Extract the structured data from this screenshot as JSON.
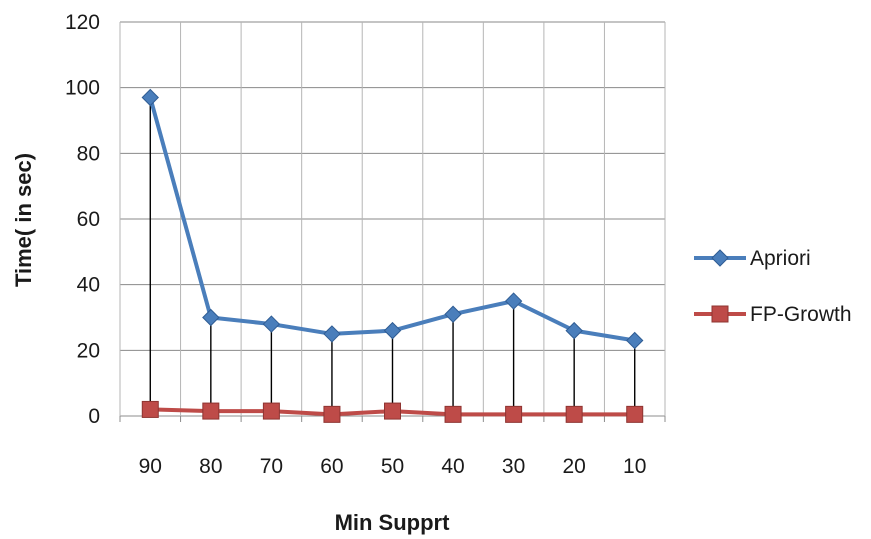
{
  "chart_data": {
    "type": "line",
    "title": "",
    "xlabel": "Min Supprt",
    "ylabel": "Time( in sec)",
    "categories": [
      "90",
      "80",
      "70",
      "60",
      "50",
      "40",
      "30",
      "20",
      "10"
    ],
    "ylim": [
      0,
      120
    ],
    "yticks": [
      "0",
      "20",
      "40",
      "60",
      "80",
      "100",
      "120"
    ],
    "grid": true,
    "drop_lines": true,
    "legend_position": "right",
    "series": [
      {
        "name": "Apriori",
        "marker": "diamond",
        "color": "#4a7ebb",
        "values": [
          97,
          30,
          28,
          25,
          26,
          31,
          35,
          26,
          23
        ]
      },
      {
        "name": "FP-Growth",
        "marker": "square",
        "color": "#be4b48",
        "values": [
          2,
          1.5,
          1.5,
          0.5,
          1.5,
          0.5,
          0.5,
          0.5,
          0.5
        ]
      }
    ]
  }
}
